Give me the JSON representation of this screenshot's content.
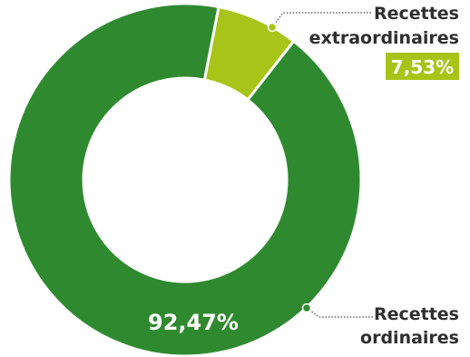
{
  "chart_data": {
    "type": "pie",
    "subtype": "donut",
    "slices": [
      {
        "label_line1": "Recettes",
        "label_line2": "ordinaires",
        "value": 92.47,
        "display": "92,47%",
        "color": "#2f8a2f"
      },
      {
        "label_line1": "Recettes",
        "label_line2": "extraordinaires",
        "value": 7.53,
        "display": "7,53%",
        "color": "#a8c418"
      }
    ],
    "legend": "none",
    "grid": false
  }
}
